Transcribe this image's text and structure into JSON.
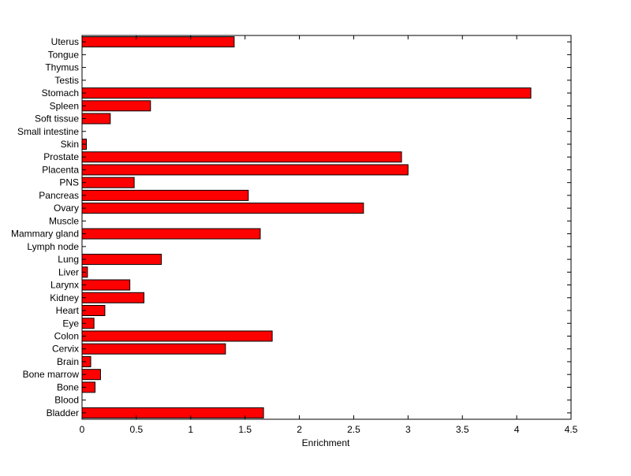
{
  "chart_data": {
    "type": "bar",
    "orientation": "horizontal",
    "xlabel": "Enrichment",
    "ylabel": "",
    "title": "",
    "xlim": [
      0,
      4.5
    ],
    "xticks": [
      "0",
      "0.5",
      "1",
      "1.5",
      "2",
      "2.5",
      "3",
      "3.5",
      "4",
      "4.5"
    ],
    "grid": false,
    "bar_color": "#ff0000",
    "edge_color": "#000000",
    "categories": [
      "Uterus",
      "Tongue",
      "Thymus",
      "Testis",
      "Stomach",
      "Spleen",
      "Soft tissue",
      "Small intestine",
      "Skin",
      "Prostate",
      "Placenta",
      "PNS",
      "Pancreas",
      "Ovary",
      "Muscle",
      "Mammary gland",
      "Lymph node",
      "Lung",
      "Liver",
      "Larynx",
      "Kidney",
      "Heart",
      "Eye",
      "Colon",
      "Cervix",
      "Brain",
      "Bone marrow",
      "Bone",
      "Blood",
      "Bladder"
    ],
    "values": [
      1.4,
      0,
      0,
      0,
      4.13,
      0.63,
      0.26,
      0,
      0.04,
      2.94,
      3.0,
      0.48,
      1.53,
      2.59,
      0,
      1.64,
      0,
      0.73,
      0.05,
      0.44,
      0.57,
      0.21,
      0.11,
      1.75,
      1.32,
      0.08,
      0.17,
      0.12,
      0,
      1.67
    ]
  }
}
